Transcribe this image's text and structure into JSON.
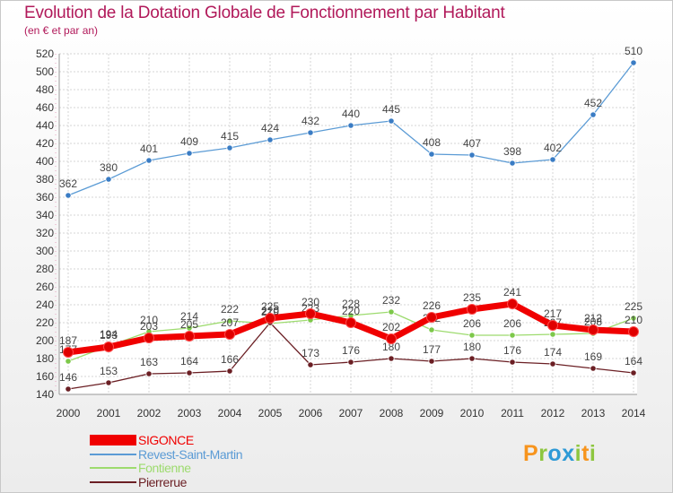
{
  "title": "Evolution de la Dotation Globale de Fonctionnement par Habitant",
  "subtitle": "(en € et par an)",
  "logo": {
    "text": "Proxiti",
    "colors": [
      "#f7941d",
      "#8dc63f",
      "#2e9ad6",
      "#2e9ad6",
      "#8dc63f",
      "#f7941d",
      "#8dc63f"
    ]
  },
  "chart_data": {
    "type": "line",
    "x": [
      "2000",
      "2001",
      "2002",
      "2003",
      "2004",
      "2005",
      "2006",
      "2007",
      "2008",
      "2009",
      "2010",
      "2011",
      "2012",
      "2013",
      "2014"
    ],
    "ylim": [
      140,
      520
    ],
    "yticks": [
      140,
      160,
      180,
      200,
      220,
      240,
      260,
      280,
      300,
      320,
      340,
      360,
      380,
      400,
      420,
      440,
      460,
      480,
      500,
      520
    ],
    "grid": true,
    "legend_position": "bottom-left",
    "series": [
      {
        "name": "Revest-Saint-Martin",
        "color": "#5b9bd5",
        "point_color": "#3a7cc4",
        "values": [
          362,
          380,
          401,
          409,
          415,
          424,
          432,
          440,
          445,
          408,
          407,
          398,
          402,
          452,
          510
        ]
      },
      {
        "name": "Fontienne",
        "color": "#9ddb6e",
        "point_color": "#7dc84a",
        "values": [
          177,
          194,
          210,
          214,
          222,
          219,
          223,
          228,
          232,
          212,
          206,
          206,
          207,
          208,
          225
        ]
      },
      {
        "name": "Pierrerue",
        "color": "#6b1f24",
        "point_color": "#6b1f24",
        "values": [
          146,
          153,
          163,
          164,
          166,
          220,
          173,
          176,
          180,
          177,
          180,
          176,
          174,
          169,
          164
        ]
      },
      {
        "name": "SIGONCE",
        "color": "#f00000",
        "point_color": "#e00000",
        "values": [
          187,
          193,
          203,
          205,
          207,
          225,
          230,
          220,
          202,
          226,
          235,
          241,
          217,
          212,
          210
        ]
      }
    ],
    "legend_order": [
      "SIGONCE",
      "Revest-Saint-Martin",
      "Fontienne",
      "Pierrerue"
    ]
  }
}
